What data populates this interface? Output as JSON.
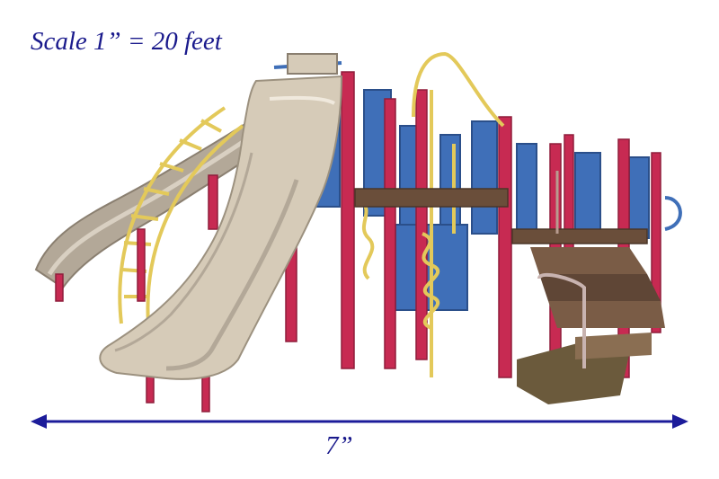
{
  "scale_text": "Scale 1” = 20 feet",
  "dimension_text": "7”",
  "colors": {
    "text": "#1a1a8c",
    "arrow": "#1c1c9a",
    "post_red": "#c72a52",
    "panel_blue": "#3f6fb8",
    "rail_yellow": "#e3c95a",
    "slide_tan": "#d6cbb8",
    "deck_brown": "#6a4e3a"
  }
}
